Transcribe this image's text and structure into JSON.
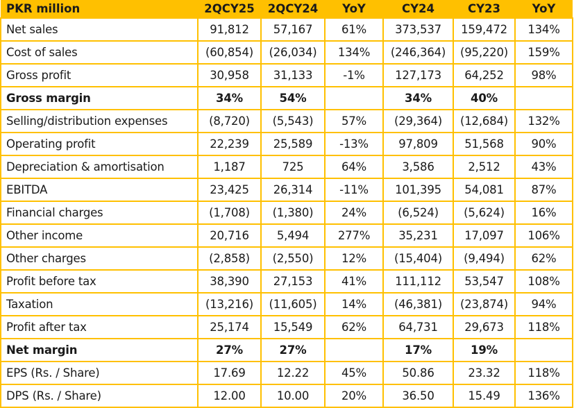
{
  "table": {
    "columns": [
      "PKR million",
      "2QCY25",
      "2QCY24",
      "YoY",
      "CY24",
      "CY23",
      "YoY"
    ],
    "rows": [
      {
        "label": "Net sales",
        "bold": false,
        "values": [
          "91,812",
          "57,167",
          "61%",
          "373,537",
          "159,472",
          "134%"
        ]
      },
      {
        "label": "Cost of sales",
        "bold": false,
        "values": [
          "(60,854)",
          "(26,034)",
          "134%",
          "(246,364)",
          "(95,220)",
          "159%"
        ]
      },
      {
        "label": "Gross profit",
        "bold": false,
        "values": [
          "30,958",
          "31,133",
          "-1%",
          "127,173",
          "64,252",
          "98%"
        ]
      },
      {
        "label": "Gross margin",
        "bold": true,
        "values": [
          "34%",
          "54%",
          "",
          "34%",
          "40%",
          ""
        ]
      },
      {
        "label": "Selling/distribution expenses",
        "bold": false,
        "values": [
          "(8,720)",
          "(5,543)",
          "57%",
          "(29,364)",
          "(12,684)",
          "132%"
        ]
      },
      {
        "label": "Operating profit",
        "bold": false,
        "values": [
          "22,239",
          "25,589",
          "-13%",
          "97,809",
          "51,568",
          "90%"
        ]
      },
      {
        "label": "Depreciation & amortisation",
        "bold": false,
        "values": [
          "1,187",
          "725",
          "64%",
          "3,586",
          "2,512",
          "43%"
        ]
      },
      {
        "label": "EBITDA",
        "bold": false,
        "values": [
          "23,425",
          "26,314",
          "-11%",
          "101,395",
          "54,081",
          "87%"
        ]
      },
      {
        "label": "Financial charges",
        "bold": false,
        "values": [
          "(1,708)",
          "(1,380)",
          "24%",
          "(6,524)",
          "(5,624)",
          "16%"
        ]
      },
      {
        "label": "Other income",
        "bold": false,
        "values": [
          "20,716",
          "5,494",
          "277%",
          "35,231",
          "17,097",
          "106%"
        ]
      },
      {
        "label": "Other charges",
        "bold": false,
        "values": [
          "(2,858)",
          "(2,550)",
          "12%",
          "(15,404)",
          "(9,494)",
          "62%"
        ]
      },
      {
        "label": "Profit before tax",
        "bold": false,
        "values": [
          "38,390",
          "27,153",
          "41%",
          "111,112",
          "53,547",
          "108%"
        ]
      },
      {
        "label": "Taxation",
        "bold": false,
        "values": [
          "(13,216)",
          "(11,605)",
          "14%",
          "(46,381)",
          "(23,874)",
          "94%"
        ]
      },
      {
        "label": "Profit after tax",
        "bold": false,
        "values": [
          "25,174",
          "15,549",
          "62%",
          "64,731",
          "29,673",
          "118%"
        ]
      },
      {
        "label": "Net margin",
        "bold": true,
        "values": [
          "27%",
          "27%",
          "",
          "17%",
          "19%",
          ""
        ]
      },
      {
        "label": "EPS (Rs. / Share)",
        "bold": false,
        "values": [
          "17.69",
          "12.22",
          "45%",
          "50.86",
          "23.32",
          "118%"
        ]
      },
      {
        "label": "DPS (Rs. / Share)",
        "bold": false,
        "values": [
          "12.00",
          "10.00",
          "20%",
          "36.50",
          "15.49",
          "136%"
        ]
      }
    ]
  },
  "colors": {
    "header_background": "#FFC000",
    "grid_line": "#FFC000",
    "text": "#1a1a1a"
  }
}
